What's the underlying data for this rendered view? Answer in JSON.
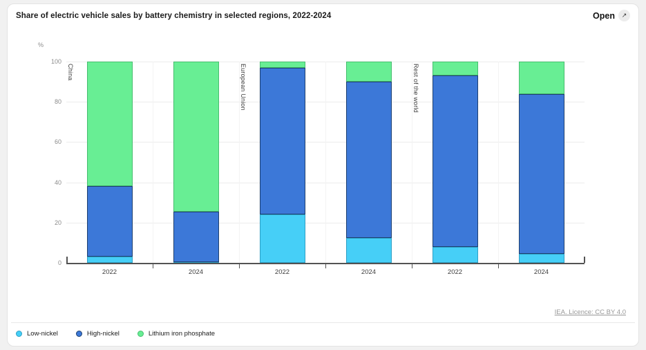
{
  "card": {
    "title": "Share of electric vehicle sales by battery chemistry in selected regions, 2022-2024",
    "open_button": {
      "label": "Open",
      "icon": "arrow-up-right-icon",
      "icon_glyph": "↗"
    },
    "source_link": "IEA. Licence: CC BY 4.0"
  },
  "chart_data": {
    "type": "bar",
    "stacked": true,
    "title": "Share of electric vehicle sales by battery chemistry in selected regions, 2022-2024",
    "unit_label": "%",
    "ylim": [
      0,
      100
    ],
    "yticks": [
      0,
      20,
      40,
      60,
      80,
      100
    ],
    "grid": true,
    "legend_position": "bottom-left",
    "groups": [
      {
        "name": "China",
        "start_index": 0
      },
      {
        "name": "European Union",
        "start_index": 2
      },
      {
        "name": "Rest of the world",
        "start_index": 4
      }
    ],
    "categories": [
      "2022",
      "2024",
      "2022",
      "2024",
      "2022",
      "2024"
    ],
    "series": [
      {
        "name": "Low-nickel",
        "color": "#46cff7",
        "border_color": "#2e9fc4",
        "values": [
          3,
          0.5,
          24,
          12.5,
          8,
          4.5
        ]
      },
      {
        "name": "High-nickel",
        "color": "#3c78d8",
        "border_color": "#1d3f6e",
        "values": [
          35,
          25,
          73,
          77.5,
          85,
          79.5
        ]
      },
      {
        "name": "Lithium iron phosphate",
        "color": "#68ee94",
        "border_color": "#46bd6e",
        "values": [
          62,
          74.5,
          3,
          10,
          7,
          16
        ]
      }
    ]
  }
}
